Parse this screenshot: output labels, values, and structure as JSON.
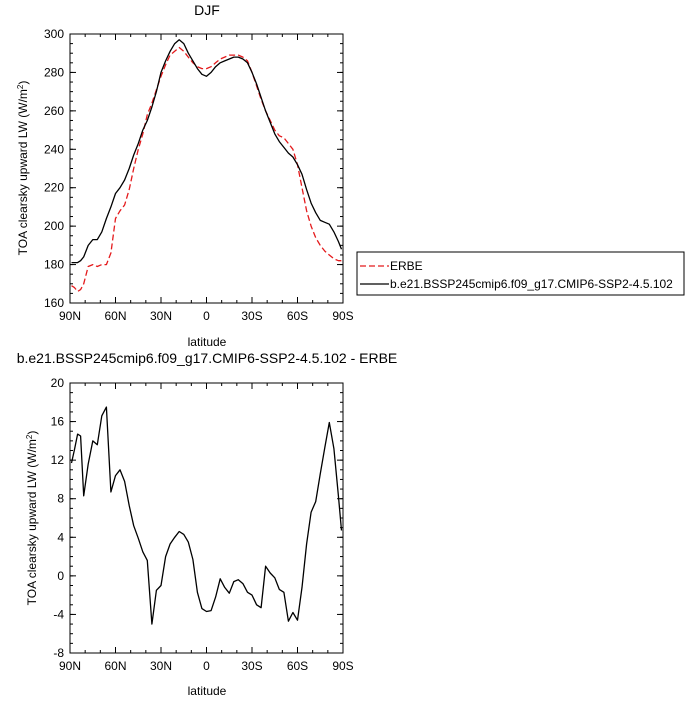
{
  "chart_data": [
    {
      "type": "line",
      "title": "DJF",
      "xlabel": "latitude",
      "ylabel": "TOA clearsky upward LW (W/m",
      "ylabel_sup": "2",
      "ylabel_end": ")",
      "x_ticks": [
        -90,
        -60,
        -30,
        0,
        30,
        60,
        90
      ],
      "x_tick_labels": [
        "90N",
        "60N",
        "30N",
        "0",
        "30S",
        "60S",
        "90S"
      ],
      "xlim": [
        -90,
        90
      ],
      "ylim": [
        160,
        300
      ],
      "y_ticks": [
        160,
        180,
        200,
        220,
        240,
        260,
        280,
        300
      ],
      "y_tick_labels": [
        "160",
        "180",
        "200",
        "220",
        "240",
        "260",
        "280",
        "300"
      ],
      "legend": {
        "placement": "right",
        "entries": [
          {
            "name": "ERBE",
            "color": "#e41a1c",
            "dash": "dashed"
          },
          {
            "name": "b.e21.BSSP245cmip6.f09_g17.CMIP6-SSP2-4.5.102",
            "color": "#000000",
            "dash": "solid"
          }
        ]
      },
      "series": [
        {
          "name": "ERBE",
          "color": "#e41a1c",
          "dash": "dashed",
          "x": [
            -89,
            -87,
            -85,
            -83,
            -81,
            -78,
            -75,
            -72,
            -69,
            -66,
            -63,
            -60,
            -57,
            -54,
            -51,
            -48,
            -45,
            -42,
            -39,
            -36,
            -33,
            -30,
            -27,
            -24,
            -21,
            -18,
            -15,
            -12,
            -9,
            -6,
            -3,
            0,
            3,
            6,
            9,
            12,
            15,
            18,
            21,
            24,
            27,
            30,
            33,
            36,
            39,
            42,
            45,
            48,
            51,
            54,
            57,
            60,
            63,
            66,
            69,
            72,
            75,
            78,
            81,
            84,
            87,
            89
          ],
          "values": [
            169,
            168,
            166,
            167,
            170,
            179,
            180,
            179,
            180,
            180,
            186,
            204,
            208,
            211,
            219,
            230,
            240,
            248,
            258,
            264,
            271,
            278,
            284,
            289,
            291,
            293,
            291,
            288,
            285,
            283,
            282,
            282,
            283,
            285,
            287,
            288,
            289,
            289,
            289,
            288,
            286,
            280,
            273,
            266,
            260,
            255,
            250,
            247,
            246,
            243,
            240,
            232,
            220,
            208,
            200,
            194,
            190,
            187,
            185,
            183,
            182,
            182
          ]
        },
        {
          "name": "b.e21.BSSP245cmip6.f09_g17.CMIP6-SSP2-4.5.102",
          "color": "#000000",
          "dash": "solid",
          "x": [
            -89,
            -87,
            -85,
            -83,
            -81,
            -78,
            -75,
            -72,
            -69,
            -66,
            -63,
            -60,
            -57,
            -54,
            -51,
            -48,
            -45,
            -42,
            -39,
            -36,
            -33,
            -30,
            -27,
            -24,
            -21,
            -18,
            -15,
            -12,
            -9,
            -6,
            -3,
            0,
            3,
            6,
            9,
            12,
            15,
            18,
            21,
            24,
            27,
            30,
            33,
            36,
            39,
            42,
            45,
            48,
            51,
            54,
            57,
            60,
            63,
            66,
            69,
            72,
            75,
            78,
            81,
            84,
            87,
            89
          ],
          "values": [
            181,
            181,
            181,
            182,
            184,
            190,
            193,
            193,
            197,
            204,
            210,
            217,
            220,
            224,
            230,
            237,
            243,
            250,
            255,
            262,
            270,
            280,
            286,
            291,
            295,
            297,
            295,
            290,
            286,
            282,
            279,
            278,
            280,
            283,
            285,
            286,
            287,
            288,
            288,
            287,
            285,
            280,
            274,
            267,
            260,
            254,
            248,
            244,
            241,
            238,
            236,
            232,
            227,
            219,
            212,
            207,
            203,
            202,
            201,
            197,
            192,
            188
          ]
        }
      ]
    },
    {
      "type": "line",
      "title": "b.e21.BSSP245cmip6.f09_g17.CMIP6-SSP2-4.5.102 - ERBE",
      "xlabel": "latitude",
      "ylabel": "TOA clearsky upward LW (W/m",
      "ylabel_sup": "2",
      "ylabel_end": ")",
      "x_ticks": [
        -90,
        -60,
        -30,
        0,
        30,
        60,
        90
      ],
      "x_tick_labels": [
        "90N",
        "60N",
        "30N",
        "0",
        "30S",
        "60S",
        "90S"
      ],
      "xlim": [
        -90,
        90
      ],
      "ylim": [
        -8,
        20
      ],
      "y_ticks": [
        -8,
        -4,
        0,
        4,
        8,
        12,
        16,
        20
      ],
      "y_tick_labels": [
        "-8",
        "-4",
        "0",
        "4",
        "8",
        "12",
        "16",
        "20"
      ],
      "series": [
        {
          "name": "",
          "color": "#000000",
          "dash": "solid",
          "x": [
            -89,
            -87,
            -85,
            -83,
            -81,
            -78,
            -75,
            -72,
            -69,
            -66,
            -63,
            -60,
            -57,
            -54,
            -51,
            -48,
            -45,
            -42,
            -39,
            -36,
            -33,
            -30,
            -27,
            -24,
            -21,
            -18,
            -15,
            -12,
            -9,
            -6,
            -3,
            0,
            3,
            6,
            9,
            12,
            15,
            18,
            21,
            24,
            27,
            30,
            33,
            36,
            39,
            42,
            45,
            48,
            51,
            54,
            57,
            60,
            63,
            66,
            69,
            72,
            75,
            78,
            81,
            84,
            87,
            89
          ],
          "values": [
            11.7,
            13.1,
            14.7,
            14.5,
            8.3,
            11.6,
            14.0,
            13.6,
            16.6,
            17.5,
            8.7,
            10.4,
            11.0,
            9.8,
            7.3,
            5.2,
            3.9,
            2.5,
            1.6,
            -5.0,
            -1.5,
            -1.0,
            2.0,
            3.3,
            4.0,
            4.6,
            4.3,
            3.5,
            1.7,
            -1.7,
            -3.4,
            -3.7,
            -3.6,
            -2.2,
            -0.3,
            -1.2,
            -1.8,
            -0.6,
            -0.4,
            -0.8,
            -1.7,
            -2.0,
            -3.0,
            -3.3,
            1.0,
            0.3,
            -0.2,
            -1.4,
            -1.7,
            -4.7,
            -3.8,
            -4.6,
            -1.2,
            3.3,
            6.6,
            7.7,
            10.6,
            13.3,
            15.9,
            13.2,
            8.3,
            4.7
          ]
        }
      ]
    }
  ]
}
